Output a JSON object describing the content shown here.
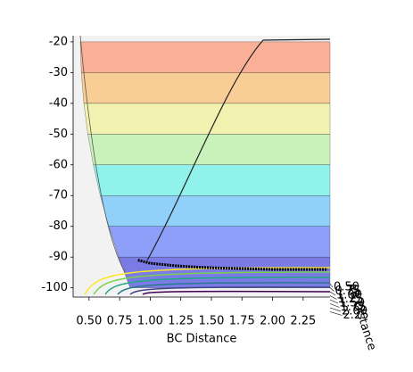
{
  "chart_data": {
    "type": "surface3d",
    "xlabel": "BC Distance",
    "ylabel": "AB Distance",
    "xlim": [
      0.37,
      2.47
    ],
    "zlim": [
      -103,
      -18
    ],
    "xticks": [
      {
        "value": 0.5,
        "label": "0.50"
      },
      {
        "value": 0.75,
        "label": "0.75"
      },
      {
        "value": 1.0,
        "label": "1.00"
      },
      {
        "value": 1.25,
        "label": "1.25"
      },
      {
        "value": 1.5,
        "label": "1.50"
      },
      {
        "value": 1.75,
        "label": "1.75"
      },
      {
        "value": 2.0,
        "label": "2.00"
      },
      {
        "value": 2.25,
        "label": "2.25"
      }
    ],
    "zticks": [
      -100,
      -90,
      -80,
      -70,
      -60,
      -50,
      -40,
      -30,
      -20
    ],
    "yticks": [
      {
        "value": 0.5,
        "label": "0.50"
      },
      {
        "value": 0.75,
        "label": "0.75"
      },
      {
        "value": 1.0,
        "label": "1.00"
      },
      {
        "value": 1.25,
        "label": "1.25"
      },
      {
        "value": 1.5,
        "label": "1.50"
      },
      {
        "value": 1.75,
        "label": "1.75"
      },
      {
        "value": 2.0,
        "label": "2.00"
      },
      {
        "value": 2.25,
        "label": "2.25"
      }
    ],
    "levels": [
      -100,
      -90,
      -80,
      -70,
      -60,
      -50,
      -40,
      -30,
      -20
    ],
    "level_colors": [
      "#1a1adb",
      "#3b5bff",
      "#3fb5ff",
      "#3ff2e6",
      "#a6f28c",
      "#f2f27a",
      "#ffb04a",
      "#ff7a4a"
    ],
    "trajectory": {
      "color": "#000000",
      "x": [
        0.9,
        1.0,
        1.2,
        1.4,
        1.6,
        1.8,
        2.0,
        2.2,
        2.45
      ],
      "z": [
        -91,
        -92,
        -92.8,
        -93.3,
        -93.6,
        -93.8,
        -94,
        -94,
        -94
      ]
    }
  }
}
